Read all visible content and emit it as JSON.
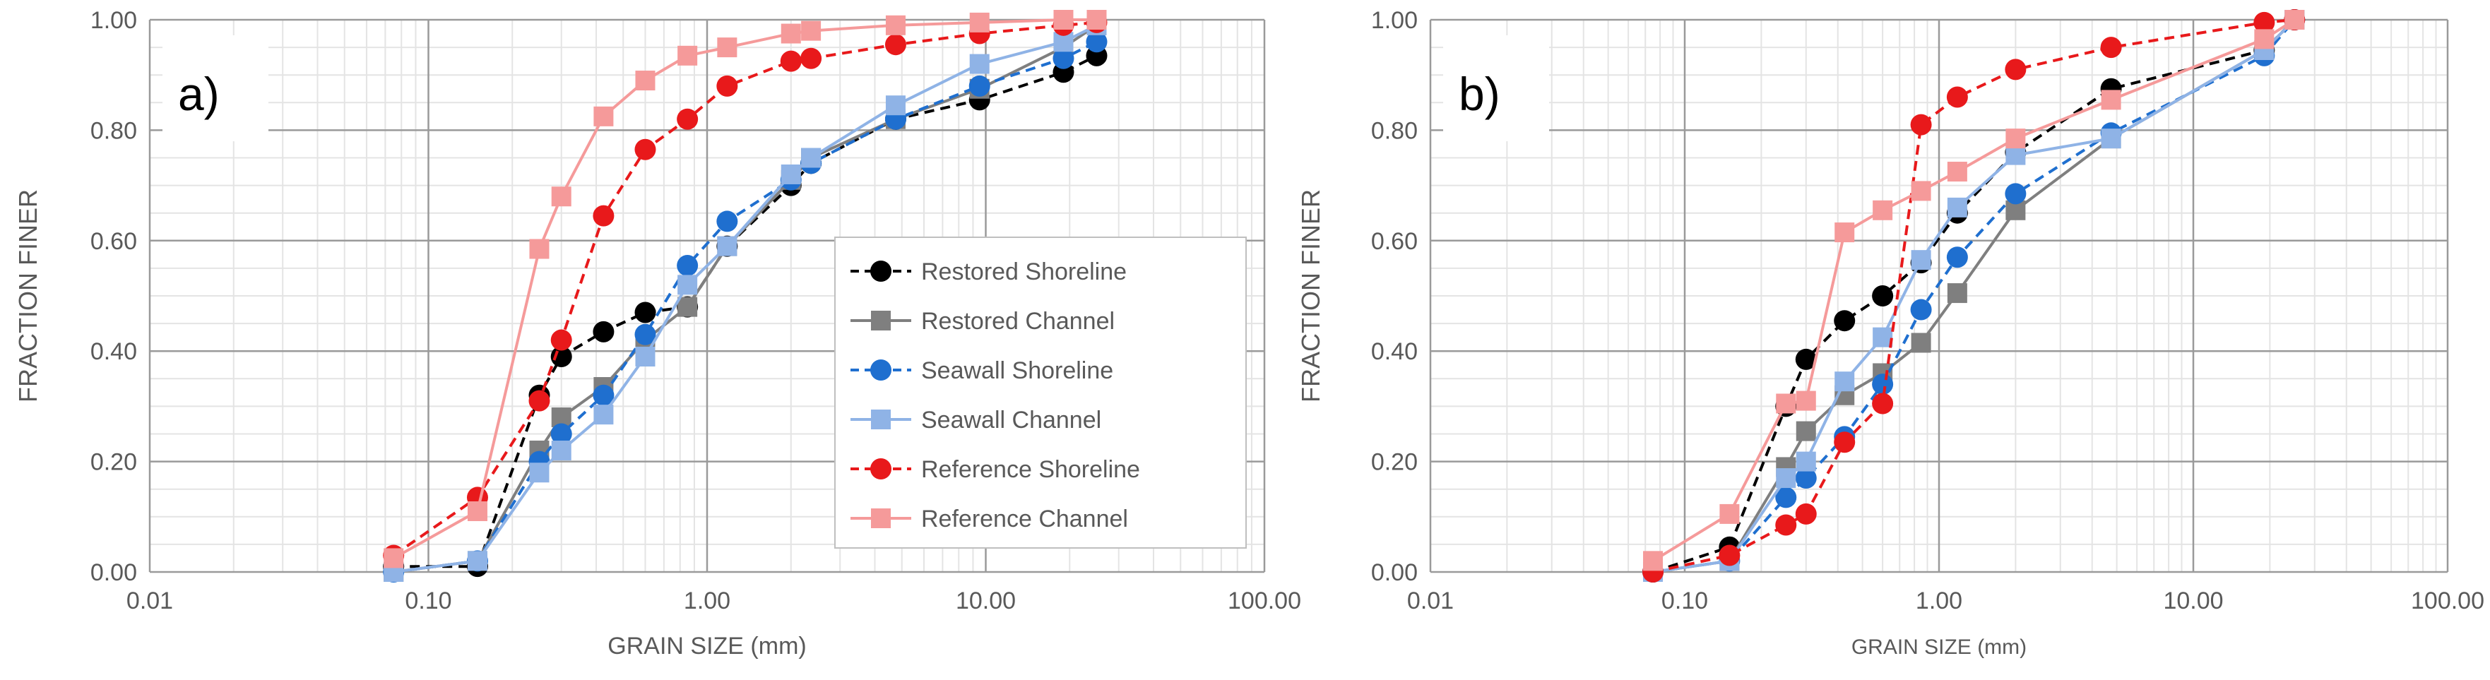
{
  "chart_data": [
    {
      "type": "line",
      "panel_label": "a)",
      "xlabel": "GRAIN SIZE (mm)",
      "ylabel": "FRACTION FINER",
      "xscale": "log",
      "xlim": [
        0.01,
        100
      ],
      "ylim": [
        0,
        1
      ],
      "x_tick_labels": [
        "0.01",
        "0.10",
        "1.00",
        "10.00",
        "100.00"
      ],
      "y_tick_labels": [
        "0.00",
        "0.20",
        "0.40",
        "0.60",
        "0.80",
        "1.00"
      ],
      "legend_position": "lower-right",
      "series": [
        {
          "name": "Restored Shoreline",
          "color": "#000000",
          "line": "dashed",
          "marker": "circle",
          "x": [
            0.075,
            0.15,
            0.25,
            0.3,
            0.425,
            0.6,
            0.85,
            1.18,
            2.0,
            2.36,
            4.75,
            9.5,
            19,
            25
          ],
          "y": [
            0.01,
            0.01,
            0.32,
            0.39,
            0.435,
            0.47,
            0.48,
            0.59,
            0.7,
            0.74,
            0.82,
            0.855,
            0.905,
            0.935
          ]
        },
        {
          "name": "Restored Channel",
          "color": "#7f7f7f",
          "line": "solid",
          "marker": "square",
          "x": [
            0.075,
            0.15,
            0.25,
            0.3,
            0.425,
            0.6,
            0.85,
            1.18,
            2.0,
            2.36,
            4.75,
            9.5,
            19,
            25
          ],
          "y": [
            0.0,
            0.02,
            0.22,
            0.28,
            0.335,
            0.42,
            0.48,
            0.59,
            0.71,
            0.75,
            0.82,
            0.875,
            0.95,
            0.99
          ]
        },
        {
          "name": "Seawall Shoreline",
          "color": "#1f6fcf",
          "line": "dashed",
          "marker": "circle",
          "x": [
            0.075,
            0.15,
            0.25,
            0.3,
            0.425,
            0.6,
            0.85,
            1.18,
            2.0,
            2.36,
            4.75,
            9.5,
            19,
            25
          ],
          "y": [
            0.0,
            0.02,
            0.2,
            0.25,
            0.32,
            0.43,
            0.555,
            0.635,
            0.71,
            0.74,
            0.82,
            0.88,
            0.93,
            0.96
          ]
        },
        {
          "name": "Seawall Channel",
          "color": "#8fb3e6",
          "line": "solid",
          "marker": "square",
          "x": [
            0.075,
            0.15,
            0.25,
            0.3,
            0.425,
            0.6,
            0.85,
            1.18,
            2.0,
            2.36,
            4.75,
            9.5,
            19,
            25
          ],
          "y": [
            0.0,
            0.02,
            0.18,
            0.22,
            0.285,
            0.39,
            0.52,
            0.59,
            0.72,
            0.75,
            0.845,
            0.92,
            0.96,
            0.99
          ]
        },
        {
          "name": "Reference Shoreline",
          "color": "#e8191b",
          "line": "dashed",
          "marker": "circle",
          "x": [
            0.075,
            0.15,
            0.25,
            0.3,
            0.425,
            0.6,
            0.85,
            1.18,
            2.0,
            2.36,
            4.75,
            9.5,
            19,
            25
          ],
          "y": [
            0.03,
            0.135,
            0.31,
            0.42,
            0.645,
            0.765,
            0.82,
            0.88,
            0.925,
            0.93,
            0.955,
            0.975,
            0.99,
            0.995
          ]
        },
        {
          "name": "Reference Channel",
          "color": "#f59a9a",
          "line": "solid",
          "marker": "square",
          "x": [
            0.075,
            0.15,
            0.25,
            0.3,
            0.425,
            0.6,
            0.85,
            1.18,
            2.0,
            2.36,
            4.75,
            9.5,
            19,
            25
          ],
          "y": [
            0.025,
            0.11,
            0.585,
            0.68,
            0.825,
            0.89,
            0.935,
            0.95,
            0.975,
            0.98,
            0.99,
            0.995,
            1.0,
            1.0
          ]
        }
      ]
    },
    {
      "type": "line",
      "panel_label": "b)",
      "xlabel": "GRAIN SIZE (mm)",
      "ylabel": "FRACTION FINER",
      "xscale": "log",
      "xlim": [
        0.01,
        100
      ],
      "ylim": [
        0,
        1
      ],
      "x_tick_labels": [
        "0.01",
        "0.10",
        "1.00",
        "10.00",
        "100.00"
      ],
      "y_tick_labels": [
        "0.00",
        "0.20",
        "0.40",
        "0.60",
        "0.80",
        "1.00"
      ],
      "series": [
        {
          "name": "Restored Shoreline",
          "color": "#000000",
          "line": "dashed",
          "marker": "circle",
          "x": [
            0.075,
            0.15,
            0.25,
            0.3,
            0.425,
            0.6,
            0.85,
            1.18,
            2.0,
            4.75,
            19,
            25
          ],
          "y": [
            0.0,
            0.045,
            0.3,
            0.385,
            0.455,
            0.5,
            0.56,
            0.65,
            0.76,
            0.875,
            0.945,
            1.0
          ]
        },
        {
          "name": "Restored Channel",
          "color": "#7f7f7f",
          "line": "solid",
          "marker": "square",
          "x": [
            0.075,
            0.15,
            0.25,
            0.3,
            0.425,
            0.6,
            0.85,
            1.18,
            2.0,
            4.75,
            19,
            25
          ],
          "y": [
            0.0,
            0.02,
            0.19,
            0.255,
            0.32,
            0.36,
            0.415,
            0.505,
            0.655,
            0.785,
            0.945,
            1.0
          ]
        },
        {
          "name": "Seawall Shoreline",
          "color": "#1f6fcf",
          "line": "dashed",
          "marker": "circle",
          "x": [
            0.075,
            0.15,
            0.25,
            0.3,
            0.425,
            0.6,
            0.85,
            1.18,
            2.0,
            4.75,
            19,
            25
          ],
          "y": [
            0.0,
            0.02,
            0.135,
            0.17,
            0.245,
            0.34,
            0.475,
            0.57,
            0.685,
            0.795,
            0.935,
            1.0
          ]
        },
        {
          "name": "Seawall Channel",
          "color": "#8fb3e6",
          "line": "solid",
          "marker": "square",
          "x": [
            0.075,
            0.15,
            0.25,
            0.3,
            0.425,
            0.6,
            0.85,
            1.18,
            2.0,
            4.75,
            19,
            25
          ],
          "y": [
            0.0,
            0.02,
            0.17,
            0.2,
            0.345,
            0.425,
            0.565,
            0.66,
            0.755,
            0.785,
            0.945,
            1.0
          ]
        },
        {
          "name": "Reference Shoreline",
          "color": "#e8191b",
          "line": "dashed",
          "marker": "circle",
          "x": [
            0.075,
            0.15,
            0.25,
            0.3,
            0.425,
            0.6,
            0.85,
            1.18,
            2.0,
            4.75,
            19,
            25
          ],
          "y": [
            0.0,
            0.03,
            0.085,
            0.105,
            0.235,
            0.305,
            0.81,
            0.86,
            0.91,
            0.95,
            0.995,
            1.0
          ]
        },
        {
          "name": "Reference Channel",
          "color": "#f59a9a",
          "line": "solid",
          "marker": "square",
          "x": [
            0.075,
            0.15,
            0.25,
            0.3,
            0.425,
            0.6,
            0.85,
            1.18,
            2.0,
            4.75,
            19,
            25
          ],
          "y": [
            0.02,
            0.105,
            0.305,
            0.31,
            0.615,
            0.655,
            0.69,
            0.725,
            0.785,
            0.855,
            0.965,
            1.0
          ]
        }
      ]
    }
  ]
}
